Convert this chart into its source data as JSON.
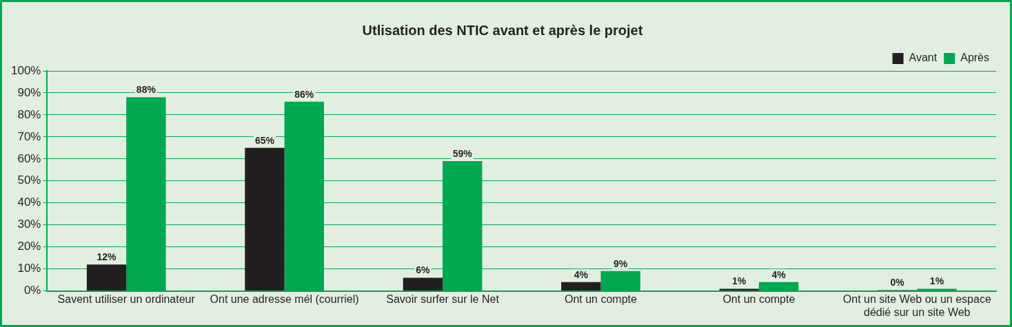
{
  "chart_data": {
    "type": "bar",
    "title": "Utlisation des NTIC avant et après le projet",
    "categories": [
      "Savent utiliser un ordinateur",
      "Ont une adresse mél (courriel)",
      "Savoir surfer sur le Net",
      "Ont un compte",
      "Ont un compte",
      "Ont un site Web ou un espace dédié sur un site Web"
    ],
    "series": [
      {
        "name": "Avant",
        "color": "#231f20",
        "values": [
          12,
          65,
          6,
          4,
          1,
          0
        ],
        "value_labels": [
          "12%",
          "65%",
          "6%",
          "4%",
          "1%",
          "0%"
        ]
      },
      {
        "name": "Après",
        "color": "#00a84f",
        "values": [
          88,
          86,
          59,
          9,
          4,
          1
        ],
        "value_labels": [
          "88%",
          "86%",
          "59%",
          "9%",
          "4%",
          "1%"
        ]
      }
    ],
    "ylim": [
      0,
      100
    ],
    "yticks": [
      {
        "value": 0,
        "label": "0%"
      },
      {
        "value": 10,
        "label": "10%"
      },
      {
        "value": 20,
        "label": "20%"
      },
      {
        "value": 30,
        "label": "30%"
      },
      {
        "value": 40,
        "label": "40%"
      },
      {
        "value": 50,
        "label": "50%"
      },
      {
        "value": 60,
        "label": "60%"
      },
      {
        "value": 70,
        "label": "70%"
      },
      {
        "value": 80,
        "label": "80%"
      },
      {
        "value": 90,
        "label": "90%"
      },
      {
        "value": 100,
        "label": "100%"
      }
    ],
    "grid": "y",
    "legend": "top right"
  }
}
